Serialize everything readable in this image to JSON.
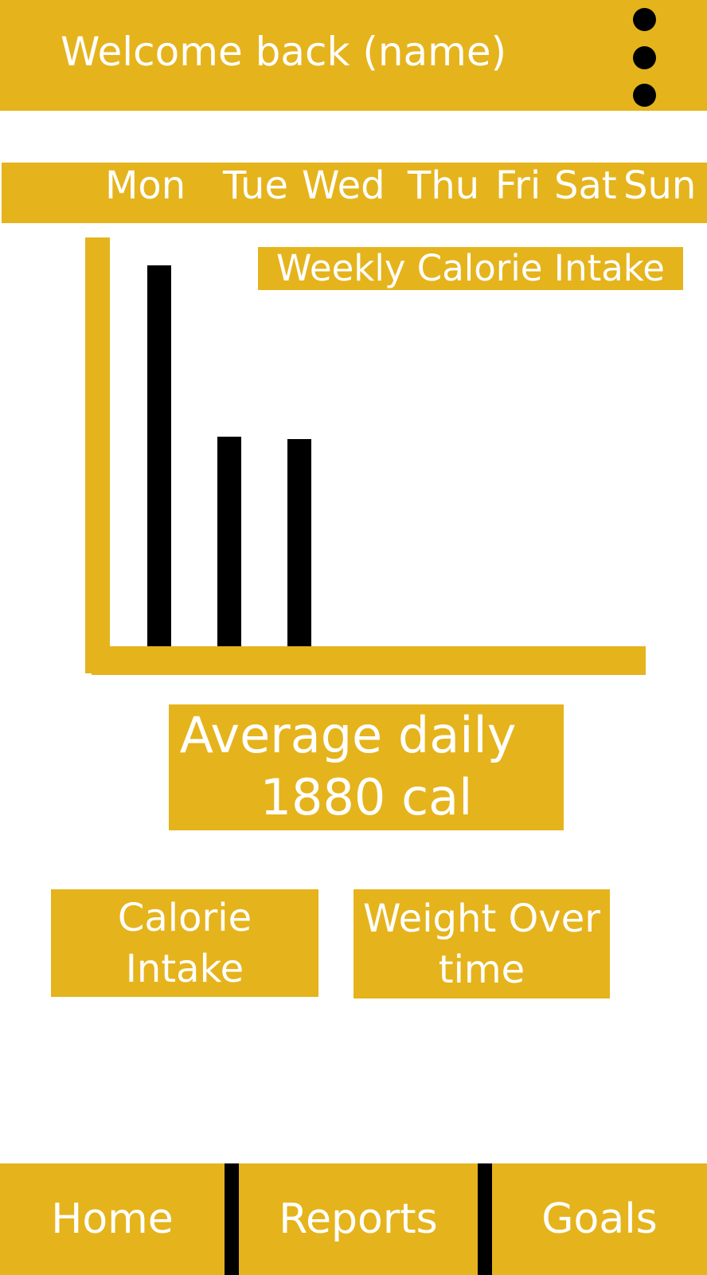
{
  "header": {
    "welcome_text": "Welcome back (name)",
    "menu_icon": "more-vert-icon"
  },
  "days": [
    "Mon",
    "Tue",
    "Wed",
    "Thu",
    "Fri",
    "Sat",
    "Sun"
  ],
  "chart_data": {
    "type": "bar",
    "title": "Weekly Calorie Intake",
    "categories": [
      "Mon",
      "Tue",
      "Wed",
      "Thu",
      "Fri",
      "Sat",
      "Sun"
    ],
    "values": [
      480,
      265,
      262,
      null,
      null,
      null,
      null
    ],
    "ylim": [
      0,
      515
    ],
    "xlabel": "",
    "ylabel": "",
    "grid": false
  },
  "summary": {
    "label": "Average daily",
    "value": "1880 cal"
  },
  "tiles": [
    {
      "line1": "Calorie",
      "line2": "Intake"
    },
    {
      "line1": "Weight Over",
      "line2": "time"
    }
  ],
  "nav": [
    "Home",
    "Reports",
    "Goals"
  ],
  "colors": {
    "accent": "#e5b31c",
    "text": "#ffffff",
    "bars": "#000000"
  }
}
